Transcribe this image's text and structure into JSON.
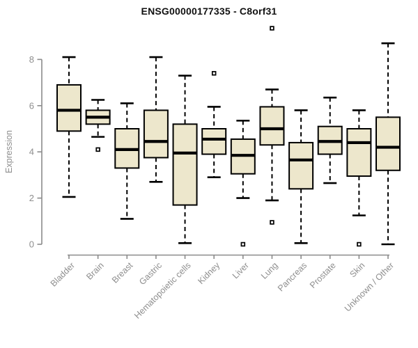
{
  "window": {
    "title": "ENSG00000177335 - C8orf31"
  },
  "chart_data": {
    "type": "box",
    "title": "ENSG00000177335 - C8orf31",
    "xlabel": "",
    "ylabel": "Expression",
    "ylim": [
      0,
      8
    ],
    "yticks": [
      0,
      2,
      4,
      6,
      8
    ],
    "grid": false,
    "legend": "none",
    "colors": {
      "box_fill": "#EDE7CC",
      "box_stroke": "#000000",
      "axis": "#8B8B8B",
      "tick_label": "#8E8E8E",
      "title": "#111111",
      "background": "#FFFFFF"
    },
    "categories": [
      "Bladder",
      "Brain",
      "Breast",
      "Gastric",
      "Hematopoietic cells",
      "Kidney",
      "Liver",
      "Lung",
      "Pancreas",
      "Prostate",
      "Skin",
      "Unknown / Other"
    ],
    "series": [
      {
        "name": "Bladder",
        "low": 2.05,
        "q1": 4.9,
        "median": 5.8,
        "q3": 6.9,
        "high": 8.1,
        "outliers": []
      },
      {
        "name": "Brain",
        "low": 4.65,
        "q1": 5.2,
        "median": 5.5,
        "q3": 5.8,
        "high": 6.25,
        "outliers": [
          4.1
        ]
      },
      {
        "name": "Breast",
        "low": 1.1,
        "q1": 3.3,
        "median": 4.1,
        "q3": 5.0,
        "high": 6.1,
        "outliers": []
      },
      {
        "name": "Gastric",
        "low": 2.7,
        "q1": 3.75,
        "median": 4.45,
        "q3": 5.8,
        "high": 8.1,
        "outliers": []
      },
      {
        "name": "Hematopoietic cells",
        "low": 0.05,
        "q1": 1.7,
        "median": 3.95,
        "q3": 5.2,
        "high": 7.3,
        "outliers": []
      },
      {
        "name": "Kidney",
        "low": 2.9,
        "q1": 3.9,
        "median": 4.55,
        "q3": 5.0,
        "high": 5.95,
        "outliers": [
          7.4
        ]
      },
      {
        "name": "Liver",
        "low": 2.0,
        "q1": 3.05,
        "median": 3.85,
        "q3": 4.55,
        "high": 5.35,
        "outliers": [
          0.0
        ]
      },
      {
        "name": "Lung",
        "low": 1.9,
        "q1": 4.3,
        "median": 5.0,
        "q3": 5.95,
        "high": 6.7,
        "outliers": [
          9.35,
          0.95
        ]
      },
      {
        "name": "Pancreas",
        "low": 0.05,
        "q1": 2.4,
        "median": 3.65,
        "q3": 4.4,
        "high": 5.8,
        "outliers": []
      },
      {
        "name": "Prostate",
        "low": 2.65,
        "q1": 3.9,
        "median": 4.45,
        "q3": 5.1,
        "high": 6.35,
        "outliers": []
      },
      {
        "name": "Skin",
        "low": 1.25,
        "q1": 2.95,
        "median": 4.4,
        "q3": 5.0,
        "high": 5.8,
        "outliers": [
          0.0
        ]
      },
      {
        "name": "Unknown / Other",
        "low": 0.0,
        "q1": 3.2,
        "median": 4.2,
        "q3": 5.5,
        "high": 8.7,
        "outliers": []
      }
    ]
  }
}
